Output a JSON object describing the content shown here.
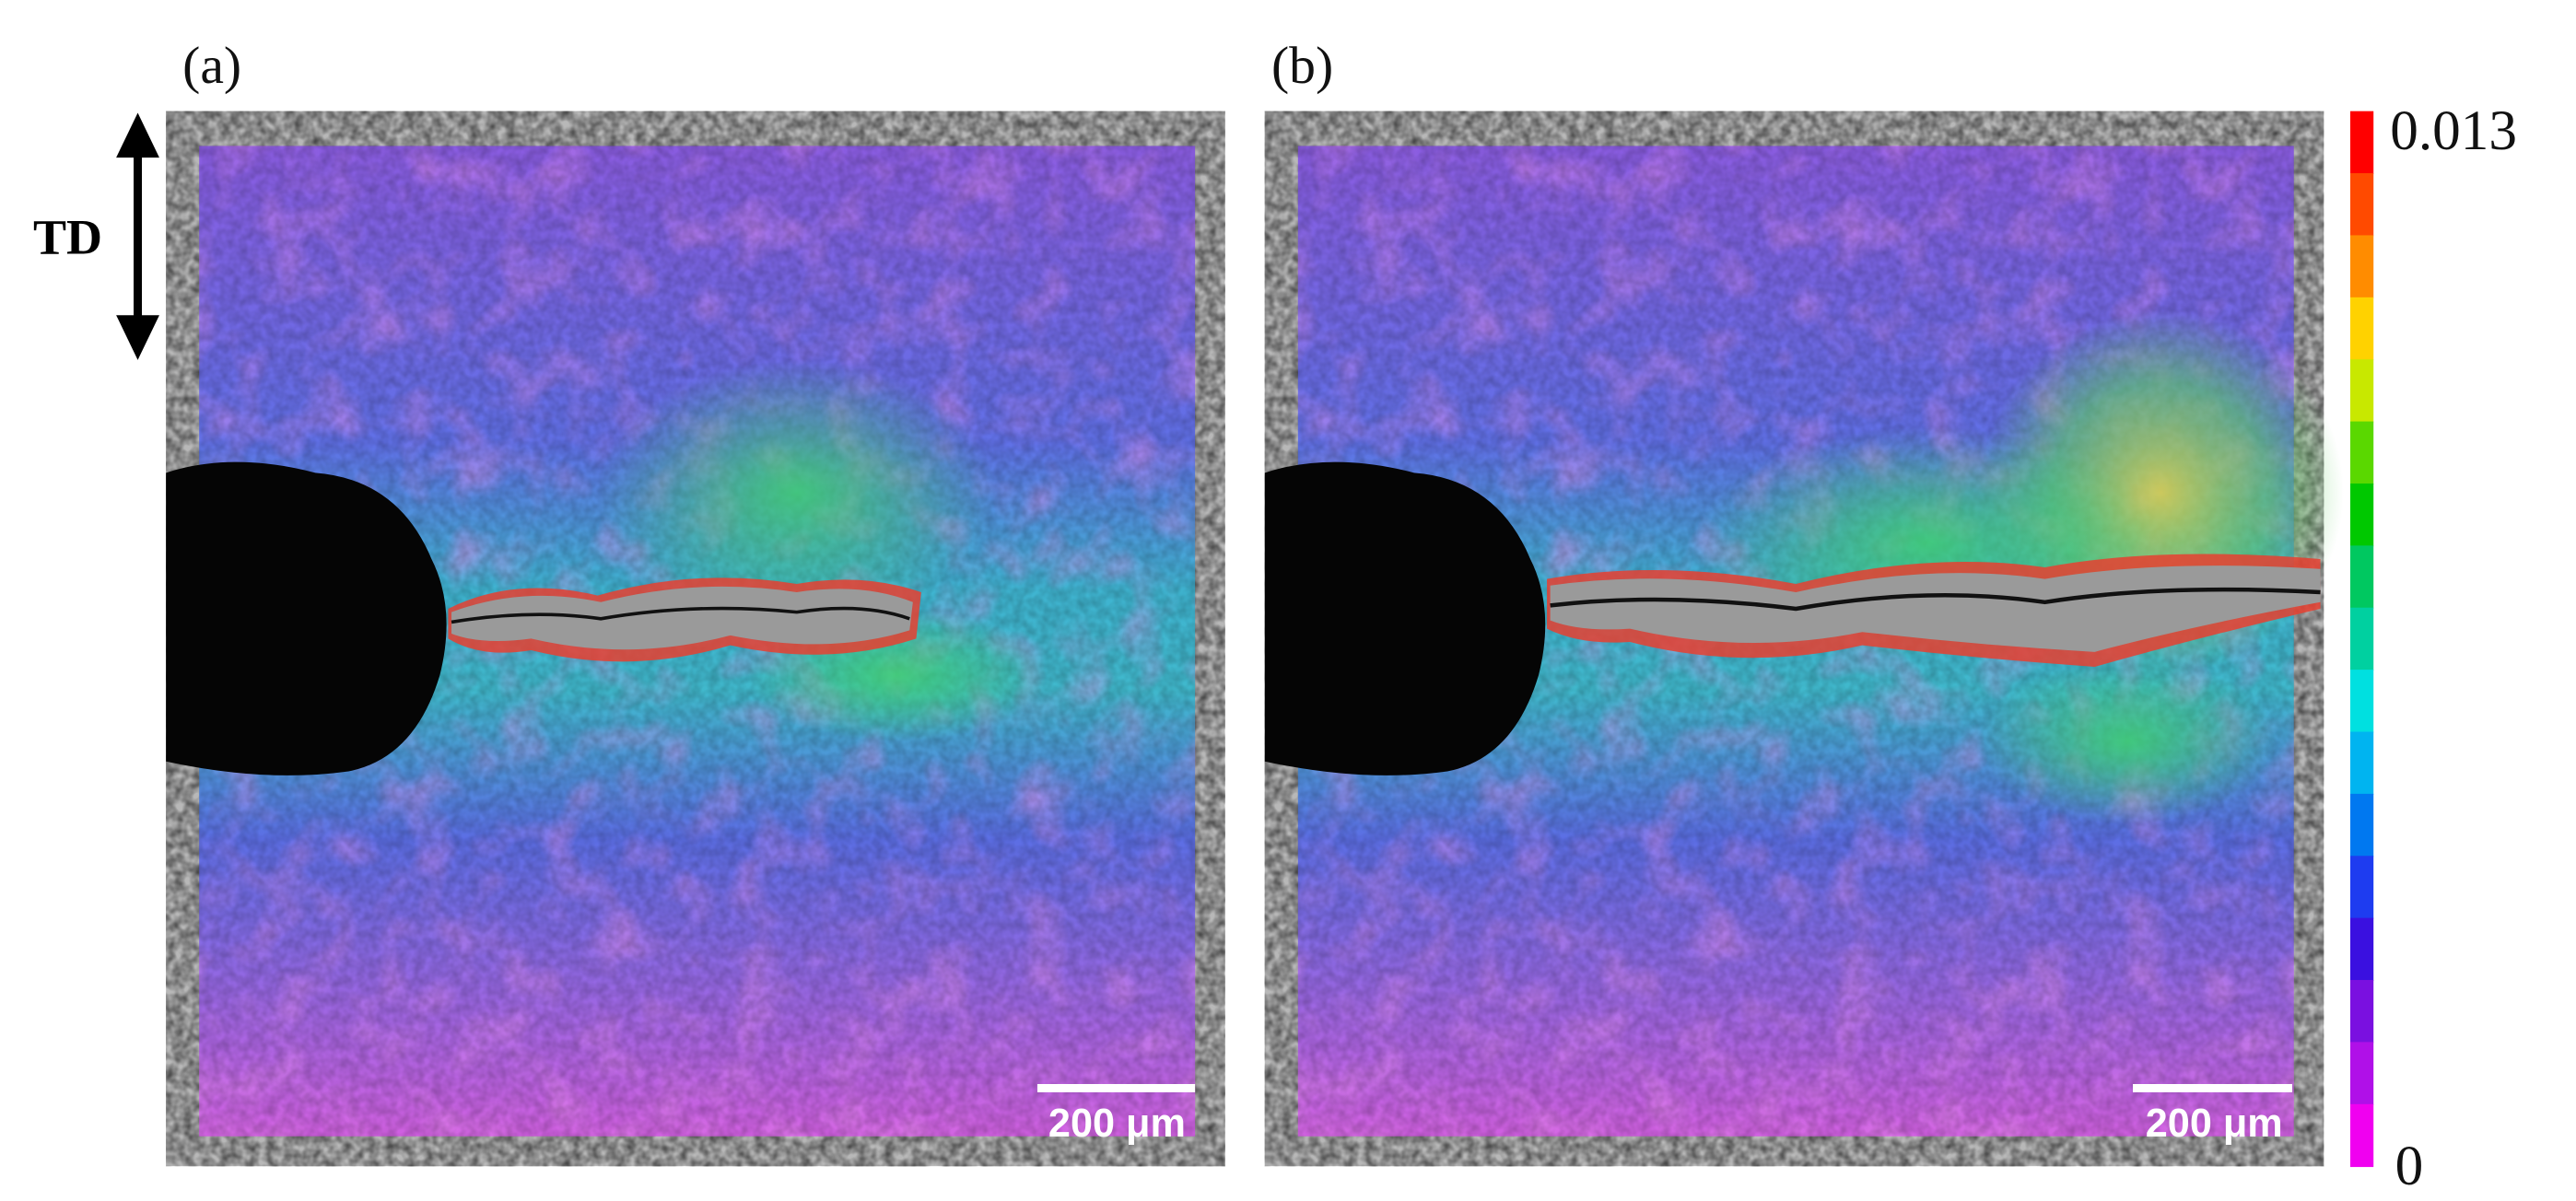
{
  "panels": [
    {
      "label": "(a)",
      "scale_bar": "200 μm"
    },
    {
      "label": "(b)",
      "scale_bar": "200 μm"
    }
  ],
  "direction_label": "TD",
  "colorbar": {
    "max": "0.013",
    "min": "0"
  }
}
